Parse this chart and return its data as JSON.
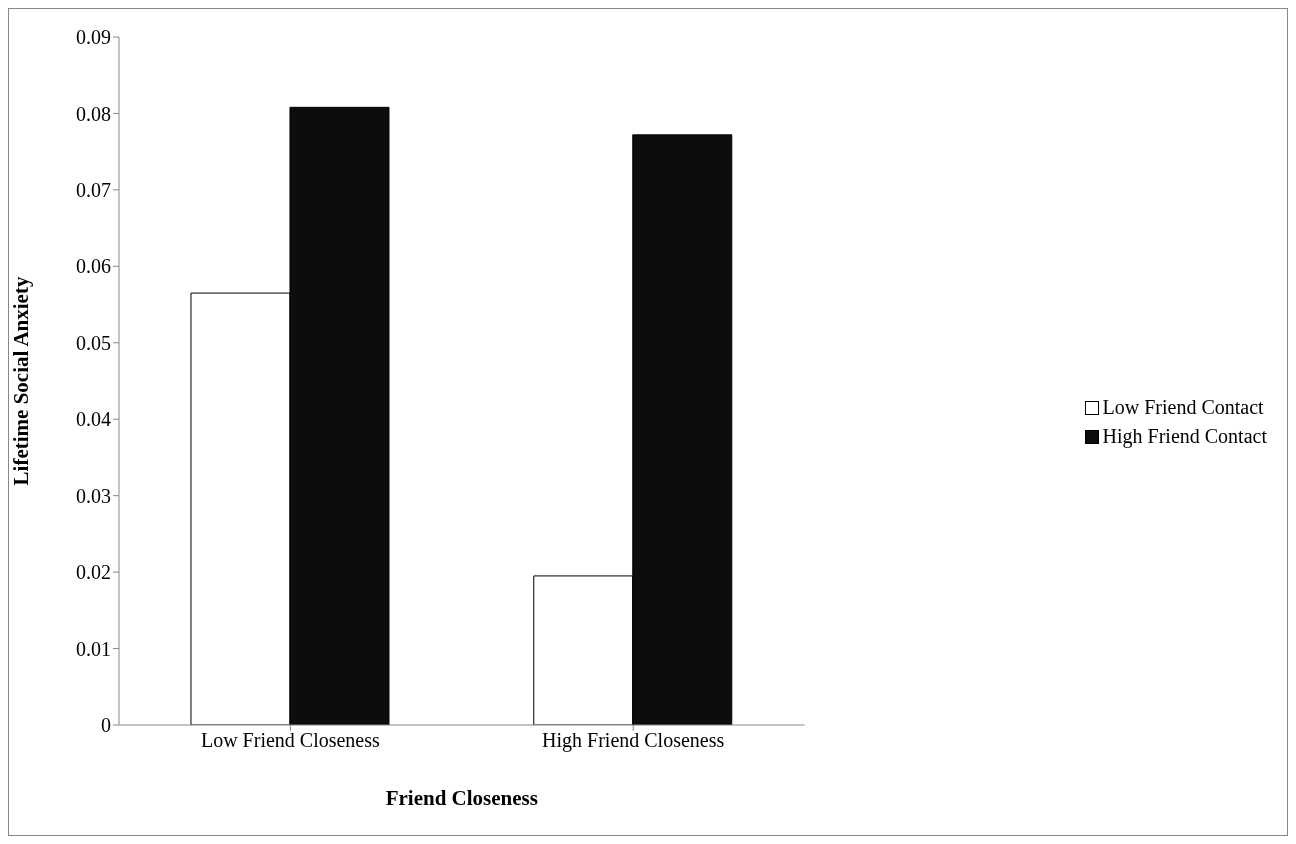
{
  "chart_data": {
    "type": "bar",
    "xlabel": "Friend Closeness",
    "ylabel": "Lifetime Social Anxiety",
    "categories": [
      "Low Friend Closeness",
      "High Friend Closeness"
    ],
    "series": [
      {
        "name": "Low Friend Contact",
        "color": "#ffffff",
        "values": [
          0.0565,
          0.0195
        ]
      },
      {
        "name": "High Friend Contact",
        "color": "#0d0d0d",
        "values": [
          0.0808,
          0.0772
        ]
      }
    ],
    "ylim": [
      0,
      0.09
    ],
    "yticks": [
      0,
      0.01,
      0.02,
      0.03,
      0.04,
      0.05,
      0.06,
      0.07,
      0.08,
      0.09
    ],
    "legend": "right"
  }
}
